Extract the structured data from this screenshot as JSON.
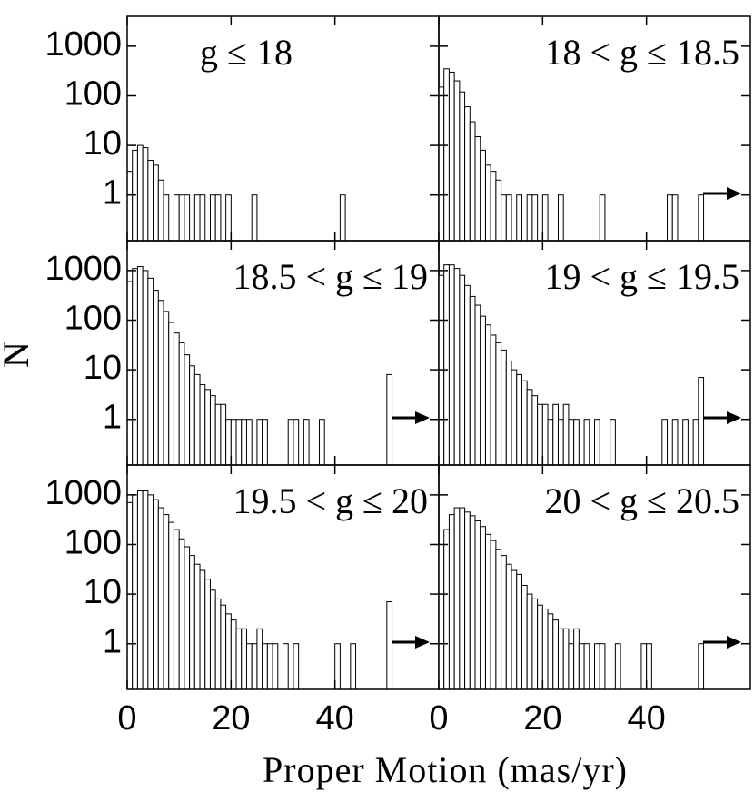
{
  "chart_data": {
    "type": "histogram",
    "xlabel": "Proper Motion (mas/yr)",
    "ylabel": "N",
    "xlim": [
      0,
      60
    ],
    "xticks": [
      0,
      20,
      40
    ],
    "ylim": [
      0.12,
      4000
    ],
    "yticks": [
      1,
      10,
      100,
      1000
    ],
    "log_y": true,
    "color": "#ffffff",
    "edgecolor": "#000000",
    "bins": [
      0,
      1,
      2,
      3,
      4,
      5,
      6,
      7,
      8,
      9,
      10,
      11,
      12,
      13,
      14,
      15,
      16,
      17,
      18,
      19,
      20,
      21,
      22,
      23,
      24,
      25,
      26,
      27,
      28,
      29,
      30,
      31,
      32,
      33,
      34,
      35,
      36,
      37,
      38,
      39,
      40,
      41,
      42,
      43,
      44,
      45,
      46,
      47,
      48,
      49,
      50,
      51
    ],
    "panels": [
      {
        "title": "g ≤ 18",
        "counts": [
          3,
          8,
          10,
          9,
          5,
          4,
          2,
          1,
          0,
          1,
          1,
          1,
          0,
          1,
          1,
          0,
          1,
          1,
          0,
          1,
          0,
          0,
          0,
          0,
          1,
          0,
          0,
          0,
          0,
          0,
          0,
          0,
          0,
          0,
          0,
          0,
          0,
          0,
          0,
          0,
          0,
          1,
          0,
          0,
          0,
          0,
          0,
          0,
          0,
          0,
          0
        ]
      },
      {
        "title": "18 < g ≤ 18.5",
        "counts": [
          150,
          350,
          300,
          200,
          120,
          60,
          30,
          15,
          8,
          4,
          3,
          2,
          1,
          1,
          0,
          1,
          0,
          1,
          1,
          0,
          1,
          0,
          0,
          1,
          0,
          0,
          0,
          0,
          0,
          0,
          0,
          1,
          0,
          0,
          0,
          0,
          0,
          0,
          0,
          0,
          0,
          0,
          0,
          0,
          1,
          1,
          0,
          0,
          0,
          0,
          1
        ]
      },
      {
        "title": "18.5 < g ≤ 19",
        "counts": [
          600,
          1100,
          1200,
          1000,
          700,
          400,
          250,
          150,
          90,
          55,
          35,
          20,
          12,
          8,
          5,
          4,
          3,
          2,
          2,
          1,
          1,
          1,
          1,
          1,
          0,
          1,
          1,
          0,
          0,
          0,
          0,
          1,
          1,
          0,
          1,
          0,
          0,
          1,
          0,
          0,
          0,
          0,
          0,
          0,
          0,
          0,
          0,
          0,
          0,
          0,
          8
        ]
      },
      {
        "title": "19 < g ≤ 19.5",
        "counts": [
          800,
          1300,
          1300,
          1100,
          800,
          500,
          300,
          200,
          120,
          80,
          50,
          35,
          25,
          15,
          10,
          8,
          6,
          4,
          3,
          2,
          2,
          1,
          2,
          1,
          2,
          1,
          1,
          0,
          1,
          0,
          1,
          0,
          0,
          1,
          0,
          0,
          0,
          0,
          0,
          0,
          0,
          0,
          0,
          1,
          0,
          1,
          0,
          1,
          0,
          1,
          7
        ]
      },
      {
        "title": "19.5 < g ≤ 20",
        "counts": [
          700,
          1000,
          1200,
          1200,
          1000,
          800,
          550,
          400,
          280,
          200,
          130,
          90,
          60,
          40,
          30,
          20,
          12,
          8,
          6,
          4,
          3,
          2,
          2,
          1,
          1,
          2,
          1,
          1,
          1,
          0,
          1,
          0,
          1,
          0,
          0,
          0,
          0,
          0,
          0,
          0,
          1,
          0,
          0,
          1,
          0,
          0,
          0,
          0,
          0,
          0,
          7
        ]
      },
      {
        "title": "20 < g ≤ 20.5",
        "counts": [
          100,
          200,
          400,
          550,
          550,
          450,
          380,
          300,
          230,
          160,
          120,
          80,
          60,
          40,
          30,
          25,
          15,
          10,
          8,
          6,
          5,
          4,
          3,
          2,
          2,
          1,
          2,
          1,
          1,
          0,
          1,
          1,
          0,
          0,
          1,
          0,
          0,
          0,
          0,
          1,
          1,
          0,
          0,
          0,
          0,
          0,
          0,
          0,
          0,
          0,
          1
        ]
      }
    ]
  }
}
